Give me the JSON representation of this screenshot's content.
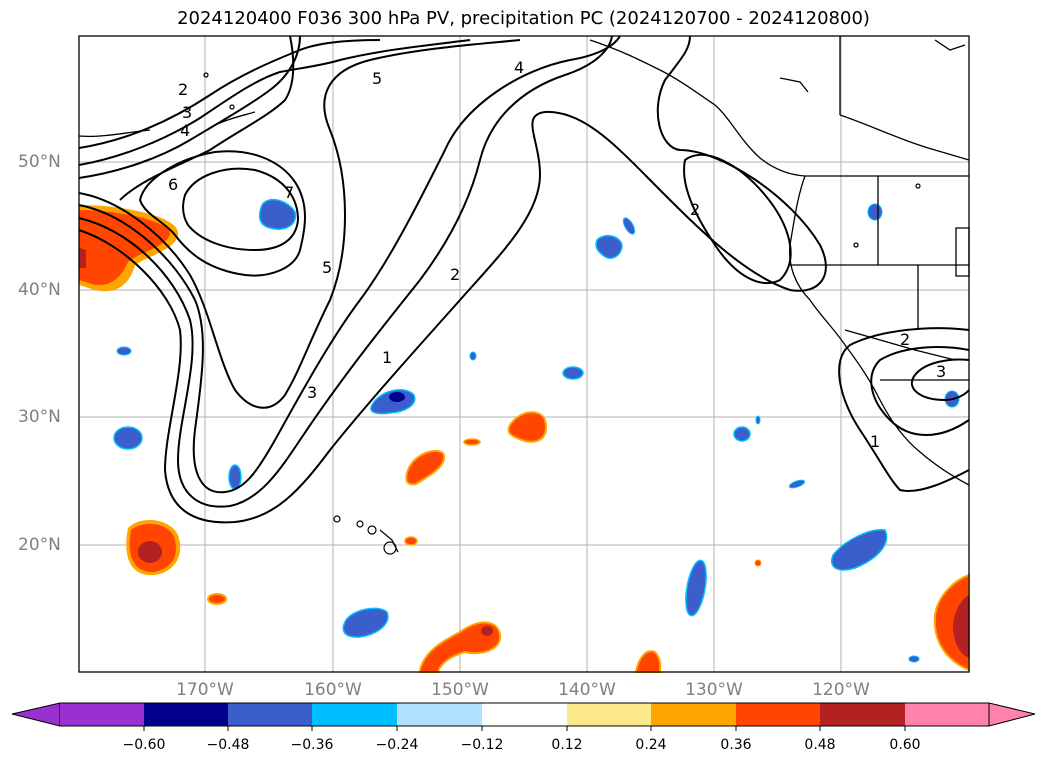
{
  "title": "2024120400 F036 300 hPa PV, precipitation PC (2024120700 - 2024120800)",
  "lat_labels": [
    "50°N",
    "40°N",
    "30°N",
    "20°N"
  ],
  "lon_labels": [
    "170°W",
    "160°W",
    "150°W",
    "140°W",
    "130°W",
    "120°W"
  ],
  "colorbar": {
    "ticks": [
      "−0.60",
      "−0.48",
      "−0.36",
      "−0.24",
      "−0.12",
      "0.12",
      "0.24",
      "0.36",
      "0.48",
      "0.60"
    ],
    "colors": [
      "#9b30d0",
      "#00008b",
      "#3a5fcd",
      "#00bfff",
      "#b0e2ff",
      "#ffffff",
      "#fce98b",
      "#ffa500",
      "#ff4500",
      "#b22222",
      "#ff82ab"
    ]
  },
  "contour_labels": [
    "2",
    "3",
    "4",
    "5",
    "6",
    "7",
    "5",
    "4",
    "2",
    "2",
    "1",
    "3",
    "2",
    "3",
    "1"
  ],
  "colors": {
    "contour": "#000000",
    "grid": "#b0b0b0",
    "coast": "#000000"
  }
}
